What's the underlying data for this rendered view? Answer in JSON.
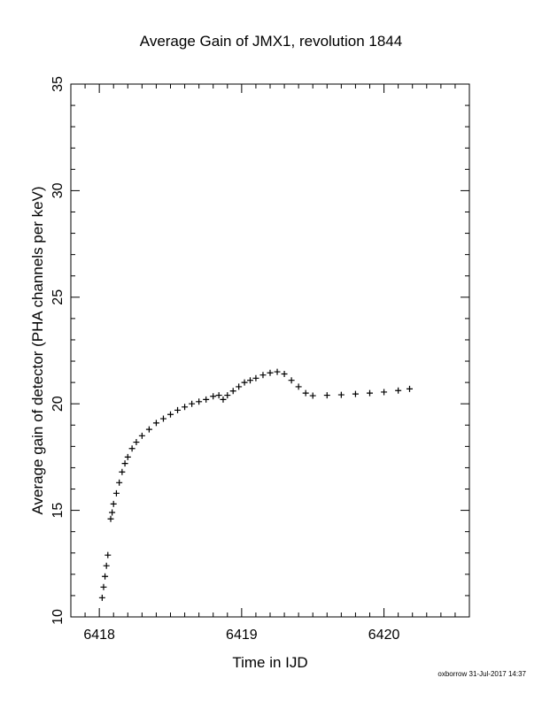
{
  "chart_data": {
    "type": "scatter",
    "title": "Average Gain of JMX1, revolution 1844",
    "xlabel": "Time in IJD",
    "ylabel": "Average gain of detector (PHA channels per keV)",
    "xlim": [
      6417.8,
      6420.6
    ],
    "ylim": [
      10,
      35
    ],
    "x_ticks": [
      6418,
      6419,
      6420
    ],
    "y_ticks": [
      10,
      15,
      20,
      25,
      30,
      35
    ],
    "marker": "plus",
    "series": [
      {
        "x": [
          6418.02,
          6418.03,
          6418.04,
          6418.05,
          6418.06,
          6418.08,
          6418.09,
          6418.1,
          6418.12,
          6418.14,
          6418.16,
          6418.18,
          6418.2,
          6418.23,
          6418.26,
          6418.3,
          6418.35,
          6418.4,
          6418.45,
          6418.5,
          6418.55,
          6418.6,
          6418.65,
          6418.7,
          6418.75,
          6418.8,
          6418.84,
          6418.87,
          6418.9,
          6418.94,
          6418.98,
          6419.02,
          6419.06,
          6419.1,
          6419.15,
          6419.2,
          6419.25,
          6419.3,
          6419.35,
          6419.4,
          6419.45,
          6419.5,
          6419.6,
          6419.7,
          6419.8,
          6419.9,
          6420.0,
          6420.1,
          6420.18
        ],
        "y": [
          10.9,
          11.4,
          11.9,
          12.4,
          12.9,
          14.6,
          14.9,
          15.3,
          15.8,
          16.3,
          16.8,
          17.2,
          17.5,
          17.9,
          18.2,
          18.5,
          18.8,
          19.1,
          19.3,
          19.5,
          19.7,
          19.85,
          20.0,
          20.1,
          20.2,
          20.35,
          20.4,
          20.2,
          20.4,
          20.6,
          20.8,
          21.0,
          21.1,
          21.2,
          21.35,
          21.45,
          21.5,
          21.4,
          21.1,
          20.8,
          20.5,
          20.38,
          20.4,
          20.42,
          20.46,
          20.5,
          20.55,
          20.62,
          20.7
        ]
      }
    ]
  },
  "footer": "oxborrow 31-Jul-2017 14:37"
}
